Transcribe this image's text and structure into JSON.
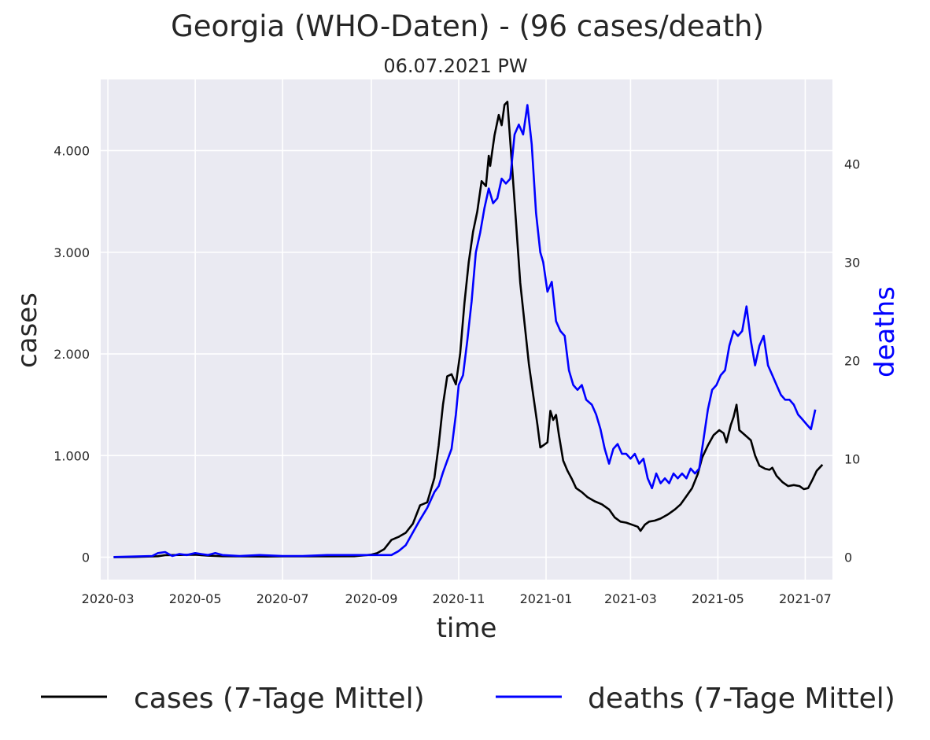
{
  "chart_data": {
    "type": "line",
    "title": "Georgia (WHO-Daten) - (96 cases/death)",
    "subtitle": "06.07.2021 PW",
    "xlabel": "time",
    "ylabel": "cases",
    "y2label": "deaths",
    "ylim": [
      -220,
      4700
    ],
    "y2lim": [
      -2.3,
      48.6
    ],
    "xlim": [
      "2020-02-25",
      "2021-07-20"
    ],
    "grid": true,
    "legend_position": "bottom",
    "x_ticks": [
      "2020-03",
      "2020-05",
      "2020-07",
      "2020-09",
      "2020-11",
      "2021-01",
      "2021-03",
      "2021-05",
      "2021-07"
    ],
    "y_ticks": [
      0,
      1000,
      2000,
      3000,
      4000
    ],
    "y_tick_labels": [
      "0",
      "1.000",
      "2.000",
      "3.000",
      "4.000"
    ],
    "y2_ticks": [
      0,
      10,
      20,
      30,
      40
    ],
    "y2_tick_labels": [
      "0",
      "10",
      "20",
      "30",
      "40"
    ],
    "colors": {
      "cases": "#000000",
      "deaths": "#0000ff",
      "plot_bg": "#eaeaf2",
      "grid": "#ffffff",
      "deaths_axis_label": "#0000ff"
    },
    "series": [
      {
        "name": "cases (7-Tage Mittel)",
        "axis": "left",
        "points": [
          [
            "2020-03-05",
            0
          ],
          [
            "2020-03-20",
            3
          ],
          [
            "2020-04-05",
            10
          ],
          [
            "2020-04-10",
            20
          ],
          [
            "2020-04-20",
            22
          ],
          [
            "2020-05-01",
            25
          ],
          [
            "2020-05-10",
            15
          ],
          [
            "2020-05-20",
            10
          ],
          [
            "2020-06-01",
            8
          ],
          [
            "2020-06-20",
            7
          ],
          [
            "2020-07-01",
            8
          ],
          [
            "2020-07-20",
            8
          ],
          [
            "2020-08-01",
            9
          ],
          [
            "2020-08-20",
            10
          ],
          [
            "2020-09-01",
            25
          ],
          [
            "2020-09-05",
            40
          ],
          [
            "2020-09-10",
            80
          ],
          [
            "2020-09-15",
            170
          ],
          [
            "2020-09-20",
            200
          ],
          [
            "2020-09-25",
            240
          ],
          [
            "2020-09-30",
            330
          ],
          [
            "2020-10-05",
            510
          ],
          [
            "2020-10-10",
            540
          ],
          [
            "2020-10-15",
            780
          ],
          [
            "2020-10-18",
            1100
          ],
          [
            "2020-10-21",
            1500
          ],
          [
            "2020-10-24",
            1780
          ],
          [
            "2020-10-27",
            1800
          ],
          [
            "2020-10-30",
            1700
          ],
          [
            "2020-11-02",
            2000
          ],
          [
            "2020-11-05",
            2500
          ],
          [
            "2020-11-08",
            2900
          ],
          [
            "2020-11-11",
            3200
          ],
          [
            "2020-11-14",
            3400
          ],
          [
            "2020-11-17",
            3700
          ],
          [
            "2020-11-20",
            3650
          ],
          [
            "2020-11-22",
            3950
          ],
          [
            "2020-11-23",
            3850
          ],
          [
            "2020-11-26",
            4150
          ],
          [
            "2020-11-29",
            4350
          ],
          [
            "2020-12-01",
            4250
          ],
          [
            "2020-12-03",
            4450
          ],
          [
            "2020-12-05",
            4480
          ],
          [
            "2020-12-08",
            3900
          ],
          [
            "2020-12-11",
            3300
          ],
          [
            "2020-12-14",
            2700
          ],
          [
            "2020-12-17",
            2300
          ],
          [
            "2020-12-20",
            1900
          ],
          [
            "2020-12-23",
            1600
          ],
          [
            "2020-12-26",
            1300
          ],
          [
            "2020-12-28",
            1080
          ],
          [
            "2020-12-30",
            1100
          ],
          [
            "2021-01-02",
            1130
          ],
          [
            "2021-01-04",
            1440
          ],
          [
            "2021-01-06",
            1350
          ],
          [
            "2021-01-08",
            1400
          ],
          [
            "2021-01-10",
            1200
          ],
          [
            "2021-01-13",
            950
          ],
          [
            "2021-01-16",
            850
          ],
          [
            "2021-01-19",
            770
          ],
          [
            "2021-01-22",
            680
          ],
          [
            "2021-01-26",
            640
          ],
          [
            "2021-01-30",
            590
          ],
          [
            "2021-02-04",
            550
          ],
          [
            "2021-02-09",
            520
          ],
          [
            "2021-02-14",
            470
          ],
          [
            "2021-02-18",
            390
          ],
          [
            "2021-02-22",
            350
          ],
          [
            "2021-02-26",
            340
          ],
          [
            "2021-03-02",
            320
          ],
          [
            "2021-03-06",
            300
          ],
          [
            "2021-03-08",
            260
          ],
          [
            "2021-03-11",
            320
          ],
          [
            "2021-03-14",
            350
          ],
          [
            "2021-03-18",
            360
          ],
          [
            "2021-03-22",
            380
          ],
          [
            "2021-03-27",
            420
          ],
          [
            "2021-04-01",
            470
          ],
          [
            "2021-04-05",
            520
          ],
          [
            "2021-04-09",
            600
          ],
          [
            "2021-04-13",
            680
          ],
          [
            "2021-04-17",
            820
          ],
          [
            "2021-04-20",
            980
          ],
          [
            "2021-04-24",
            1100
          ],
          [
            "2021-04-28",
            1200
          ],
          [
            "2021-05-02",
            1250
          ],
          [
            "2021-05-05",
            1220
          ],
          [
            "2021-05-07",
            1130
          ],
          [
            "2021-05-10",
            1300
          ],
          [
            "2021-05-12",
            1380
          ],
          [
            "2021-05-14",
            1500
          ],
          [
            "2021-05-16",
            1250
          ],
          [
            "2021-05-20",
            1200
          ],
          [
            "2021-05-24",
            1150
          ],
          [
            "2021-05-27",
            1000
          ],
          [
            "2021-05-30",
            900
          ],
          [
            "2021-06-03",
            870
          ],
          [
            "2021-06-06",
            860
          ],
          [
            "2021-06-08",
            880
          ],
          [
            "2021-06-11",
            800
          ],
          [
            "2021-06-15",
            740
          ],
          [
            "2021-06-19",
            700
          ],
          [
            "2021-06-23",
            710
          ],
          [
            "2021-06-27",
            700
          ],
          [
            "2021-06-30",
            670
          ],
          [
            "2021-07-03",
            680
          ],
          [
            "2021-07-06",
            760
          ],
          [
            "2021-07-09",
            850
          ],
          [
            "2021-07-13",
            910
          ]
        ]
      },
      {
        "name": "deaths (7-Tage Mittel)",
        "axis": "right",
        "points": [
          [
            "2020-03-05",
            0
          ],
          [
            "2020-04-01",
            0.1
          ],
          [
            "2020-04-05",
            0.4
          ],
          [
            "2020-04-10",
            0.5
          ],
          [
            "2020-04-15",
            0.1
          ],
          [
            "2020-04-20",
            0.3
          ],
          [
            "2020-04-25",
            0.2
          ],
          [
            "2020-05-01",
            0.4
          ],
          [
            "2020-05-05",
            0.3
          ],
          [
            "2020-05-10",
            0.2
          ],
          [
            "2020-05-15",
            0.4
          ],
          [
            "2020-05-20",
            0.2
          ],
          [
            "2020-06-01",
            0.1
          ],
          [
            "2020-06-15",
            0.2
          ],
          [
            "2020-07-01",
            0.1
          ],
          [
            "2020-07-15",
            0.1
          ],
          [
            "2020-08-01",
            0.2
          ],
          [
            "2020-08-15",
            0.2
          ],
          [
            "2020-09-01",
            0.2
          ],
          [
            "2020-09-15",
            0.2
          ],
          [
            "2020-09-20",
            0.6
          ],
          [
            "2020-09-25",
            1.2
          ],
          [
            "2020-09-30",
            2.5
          ],
          [
            "2020-10-05",
            3.8
          ],
          [
            "2020-10-10",
            5.0
          ],
          [
            "2020-10-15",
            6.6
          ],
          [
            "2020-10-18",
            7.2
          ],
          [
            "2020-10-21",
            8.6
          ],
          [
            "2020-10-24",
            9.8
          ],
          [
            "2020-10-27",
            11.0
          ],
          [
            "2020-10-30",
            14.5
          ],
          [
            "2020-11-01",
            17.5
          ],
          [
            "2020-11-04",
            18.5
          ],
          [
            "2020-11-07",
            22.0
          ],
          [
            "2020-11-10",
            26.0
          ],
          [
            "2020-11-13",
            31.0
          ],
          [
            "2020-11-16",
            33.0
          ],
          [
            "2020-11-19",
            35.5
          ],
          [
            "2020-11-22",
            37.5
          ],
          [
            "2020-11-25",
            36.0
          ],
          [
            "2020-11-28",
            36.5
          ],
          [
            "2020-12-01",
            38.5
          ],
          [
            "2020-12-04",
            38.0
          ],
          [
            "2020-12-07",
            38.5
          ],
          [
            "2020-12-10",
            43.0
          ],
          [
            "2020-12-13",
            44.0
          ],
          [
            "2020-12-16",
            43.0
          ],
          [
            "2020-12-19",
            46.0
          ],
          [
            "2020-12-22",
            42.0
          ],
          [
            "2020-12-25",
            35.0
          ],
          [
            "2020-12-28",
            31.0
          ],
          [
            "2020-12-30",
            30.0
          ],
          [
            "2021-01-02",
            27.0
          ],
          [
            "2021-01-05",
            28.0
          ],
          [
            "2021-01-08",
            24.0
          ],
          [
            "2021-01-11",
            23.0
          ],
          [
            "2021-01-14",
            22.5
          ],
          [
            "2021-01-17",
            19.0
          ],
          [
            "2021-01-20",
            17.5
          ],
          [
            "2021-01-23",
            17.0
          ],
          [
            "2021-01-26",
            17.5
          ],
          [
            "2021-01-29",
            16.0
          ],
          [
            "2021-02-02",
            15.5
          ],
          [
            "2021-02-05",
            14.5
          ],
          [
            "2021-02-08",
            13.0
          ],
          [
            "2021-02-11",
            11.0
          ],
          [
            "2021-02-14",
            9.5
          ],
          [
            "2021-02-17",
            11.0
          ],
          [
            "2021-02-20",
            11.5
          ],
          [
            "2021-02-23",
            10.5
          ],
          [
            "2021-02-26",
            10.5
          ],
          [
            "2021-03-01",
            10.0
          ],
          [
            "2021-03-04",
            10.5
          ],
          [
            "2021-03-07",
            9.5
          ],
          [
            "2021-03-10",
            10.0
          ],
          [
            "2021-03-13",
            8.0
          ],
          [
            "2021-03-16",
            7.0
          ],
          [
            "2021-03-19",
            8.5
          ],
          [
            "2021-03-22",
            7.5
          ],
          [
            "2021-03-25",
            8.0
          ],
          [
            "2021-03-28",
            7.5
          ],
          [
            "2021-03-31",
            8.5
          ],
          [
            "2021-04-03",
            8.0
          ],
          [
            "2021-04-06",
            8.5
          ],
          [
            "2021-04-09",
            8.0
          ],
          [
            "2021-04-12",
            9.0
          ],
          [
            "2021-04-15",
            8.5
          ],
          [
            "2021-04-18",
            9.0
          ],
          [
            "2021-04-21",
            12.0
          ],
          [
            "2021-04-24",
            15.0
          ],
          [
            "2021-04-27",
            17.0
          ],
          [
            "2021-04-30",
            17.5
          ],
          [
            "2021-05-03",
            18.5
          ],
          [
            "2021-05-06",
            19.0
          ],
          [
            "2021-05-09",
            21.5
          ],
          [
            "2021-05-12",
            23.0
          ],
          [
            "2021-05-15",
            22.5
          ],
          [
            "2021-05-18",
            23.0
          ],
          [
            "2021-05-21",
            25.5
          ],
          [
            "2021-05-24",
            22.0
          ],
          [
            "2021-05-27",
            19.5
          ],
          [
            "2021-05-30",
            21.5
          ],
          [
            "2021-06-02",
            22.5
          ],
          [
            "2021-06-05",
            19.5
          ],
          [
            "2021-06-08",
            18.5
          ],
          [
            "2021-06-11",
            17.5
          ],
          [
            "2021-06-14",
            16.5
          ],
          [
            "2021-06-17",
            16.0
          ],
          [
            "2021-06-20",
            16.0
          ],
          [
            "2021-06-23",
            15.5
          ],
          [
            "2021-06-26",
            14.5
          ],
          [
            "2021-06-29",
            14.0
          ],
          [
            "2021-07-02",
            13.5
          ],
          [
            "2021-07-05",
            13.0
          ],
          [
            "2021-07-08",
            15.0
          ]
        ]
      }
    ]
  }
}
